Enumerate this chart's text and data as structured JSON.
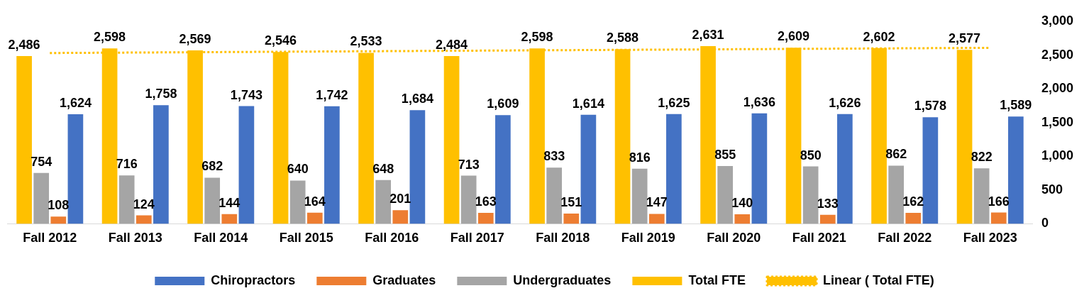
{
  "chart_data": {
    "type": "bar",
    "categories": [
      "Fall 2012",
      "Fall 2013",
      "Fall 2014",
      "Fall 2015",
      "Fall 2016",
      "Fall 2017",
      "Fall 2018",
      "Fall 2019",
      "Fall 2020",
      "Fall 2021",
      "Fall 2022",
      "Fall 2023"
    ],
    "series": [
      {
        "name": "Total FTE",
        "color": "#ffc000",
        "values": [
          2486,
          2598,
          2569,
          2546,
          2533,
          2484,
          2598,
          2588,
          2631,
          2609,
          2602,
          2577
        ],
        "value_labels": [
          "2,486",
          "2,598",
          "2,569",
          "2,546",
          "2,533",
          "2,484",
          "2,598",
          "2,588",
          "2,631",
          "2,609",
          "2,602",
          "2,577"
        ]
      },
      {
        "name": "Undergraduates",
        "color": "#a5a5a5",
        "values": [
          754,
          716,
          682,
          640,
          648,
          713,
          833,
          816,
          855,
          850,
          862,
          822
        ],
        "value_labels": [
          "754",
          "716",
          "682",
          "640",
          "648",
          "713",
          "833",
          "816",
          "855",
          "850",
          "862",
          "822"
        ]
      },
      {
        "name": "Graduates",
        "color": "#ed7d31",
        "values": [
          108,
          124,
          144,
          164,
          201,
          163,
          151,
          147,
          140,
          133,
          162,
          166
        ],
        "value_labels": [
          "108",
          "124",
          "144",
          "164",
          "201",
          "163",
          "151",
          "147",
          "140",
          "133",
          "162",
          "166"
        ]
      },
      {
        "name": "Chiropractors",
        "color": "#4472c4",
        "values": [
          1624,
          1758,
          1743,
          1742,
          1684,
          1609,
          1614,
          1625,
          1636,
          1626,
          1578,
          1589
        ],
        "value_labels": [
          "1,624",
          "1,758",
          "1,743",
          "1,742",
          "1,684",
          "1,609",
          "1,614",
          "1,625",
          "1,636",
          "1,626",
          "1,578",
          "1,589"
        ]
      },
      {
        "name": "Linear ( Total FTE)",
        "type": "line",
        "color": "#ffc000",
        "line_style": "dotted",
        "marker": "none",
        "values": [
          2530,
          2537,
          2544,
          2551,
          2558,
          2565,
          2572,
          2579,
          2586,
          2593,
          2600,
          2607
        ]
      }
    ],
    "ylim": [
      0,
      3000
    ],
    "yticks": [
      0,
      500,
      {
        "value": 1000,
        "label": "1,000"
      },
      {
        "value": 1500,
        "label": "1,500"
      },
      {
        "value": 2000,
        "label": "2,000"
      },
      {
        "value": 2500,
        "label": "2,500"
      },
      {
        "value": 3000,
        "label": "3,000"
      }
    ],
    "grid": false,
    "legend": "bottom"
  }
}
